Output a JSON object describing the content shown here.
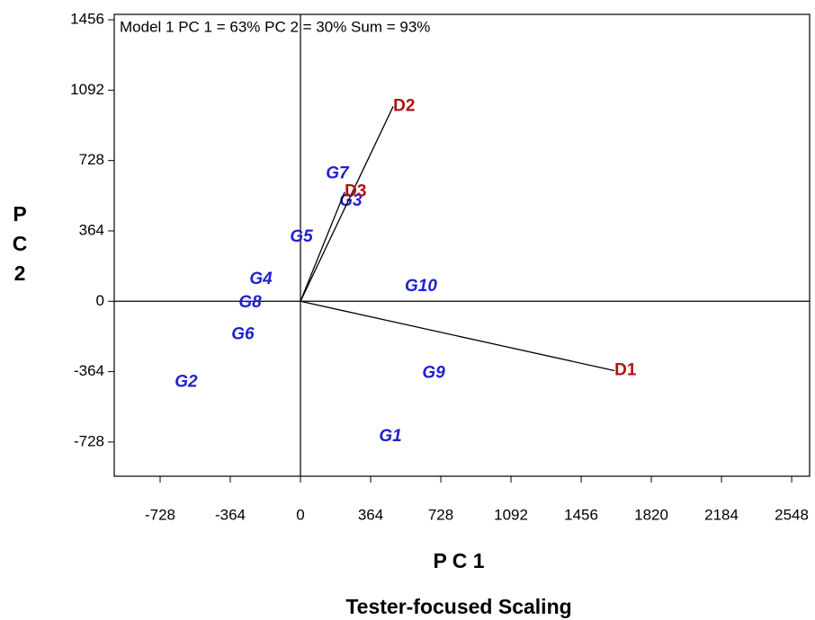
{
  "chart_data": {
    "type": "scatter",
    "title": "Model 1 PC 1 = 63% PC 2 = 30% Sum = 93%",
    "xlabel": "P C 1",
    "ylabel": "P C 2",
    "caption": "Tester-focused Scaling",
    "xlim": [
      -966,
      2641
    ],
    "ylim": [
      -905,
      1484
    ],
    "xticks": [
      -728,
      -364,
      0,
      364,
      728,
      1092,
      1456,
      1820,
      2184,
      2548
    ],
    "yticks": [
      -728,
      -364,
      0,
      364,
      728,
      1092,
      1456
    ],
    "series": [
      {
        "color": "#1f1fd0",
        "vectors": false,
        "labels": [
          "G1",
          "G2",
          "G3",
          "G4",
          "G5",
          "G6",
          "G7",
          "G8",
          "G9",
          "G10"
        ],
        "x": [
          467,
          -593,
          261,
          -205,
          5,
          -299,
          191,
          -261,
          691,
          625
        ],
        "values": [
          -700,
          -420,
          518,
          112,
          331,
          -173,
          658,
          -9,
          -373,
          75
        ]
      },
      {
        "color": "#b01010",
        "vectors": true,
        "labels": [
          "D1",
          "D2",
          "D3"
        ],
        "x": [
          1629,
          481,
          229
        ],
        "values": [
          -359,
          1008,
          565
        ]
      }
    ]
  }
}
